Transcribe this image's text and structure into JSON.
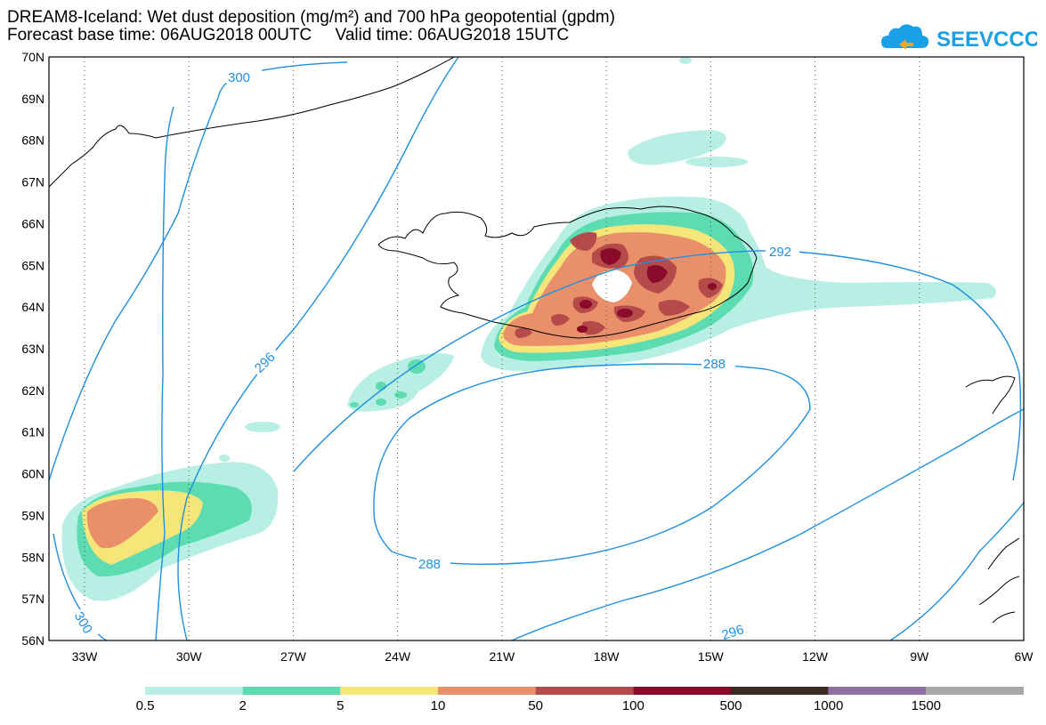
{
  "header": {
    "title_line1": "DREAM8-Iceland: Wet dust deposition (mg/m²) and 700 hPa geopotential (gpdm)",
    "title_line2": "Forecast base time: 06AUG2018 00UTC     Valid time: 06AUG2018 15UTC"
  },
  "logo": {
    "text": "SEEVCCC",
    "icon": "cloud-icon",
    "color": "#1aa0e6"
  },
  "axes": {
    "lat_labels": [
      "70N",
      "69N",
      "68N",
      "67N",
      "66N",
      "65N",
      "64N",
      "63N",
      "62N",
      "61N",
      "60N",
      "59N",
      "58N",
      "57N",
      "56N"
    ],
    "lon_labels": [
      "33W",
      "30W",
      "27W",
      "24W",
      "21W",
      "18W",
      "15W",
      "12W",
      "9W",
      "6W"
    ]
  },
  "contours": {
    "color": "#1e90e0",
    "labels": [
      "300",
      "296",
      "292",
      "288",
      "288",
      "296",
      "300"
    ]
  },
  "legend": {
    "colors": [
      "#b8efe4",
      "#5cdcb0",
      "#f6e67a",
      "#e9906a",
      "#b44a4a",
      "#8a0a2a",
      "#3b2a22",
      "#8f6fa0",
      "#a8a8a8"
    ],
    "labels": [
      "0.5",
      "2",
      "5",
      "10",
      "50",
      "100",
      "500",
      "1000",
      "1500"
    ]
  }
}
